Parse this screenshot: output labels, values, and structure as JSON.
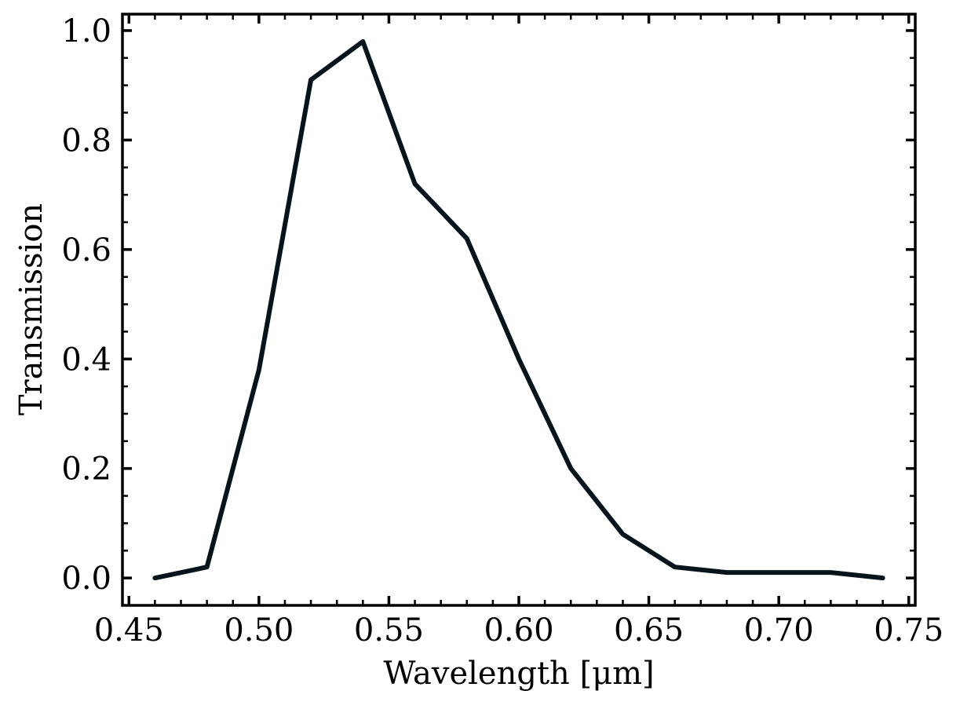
{
  "chart_data": {
    "type": "line",
    "title": "",
    "xlabel": "Wavelength [μm]",
    "ylabel": "Transmission",
    "xlim": [
      0.4475,
      0.7525
    ],
    "ylim": [
      -0.05,
      1.03
    ],
    "x_ticks": [
      0.45,
      0.5,
      0.55,
      0.6,
      0.65,
      0.7,
      0.75
    ],
    "x_tick_labels": [
      "0.45",
      "0.50",
      "0.55",
      "0.60",
      "0.65",
      "0.70",
      "0.75"
    ],
    "y_ticks": [
      0.0,
      0.2,
      0.4,
      0.6,
      0.8,
      1.0
    ],
    "y_tick_labels": [
      "0.0",
      "0.2",
      "0.4",
      "0.6",
      "0.8",
      "1.0"
    ],
    "x_minor_step": 0.01,
    "y_minor_step": 0.05,
    "grid": false,
    "legend": "none",
    "line_color": "#06141b",
    "series": [
      {
        "x": [
          0.46,
          0.48,
          0.5,
          0.52,
          0.54,
          0.56,
          0.58,
          0.6,
          0.62,
          0.64,
          0.66,
          0.68,
          0.7,
          0.72,
          0.74
        ],
        "y": [
          0.0,
          0.02,
          0.38,
          0.91,
          0.98,
          0.72,
          0.62,
          0.4,
          0.2,
          0.08,
          0.02,
          0.01,
          0.01,
          0.01,
          0.0
        ]
      }
    ]
  }
}
